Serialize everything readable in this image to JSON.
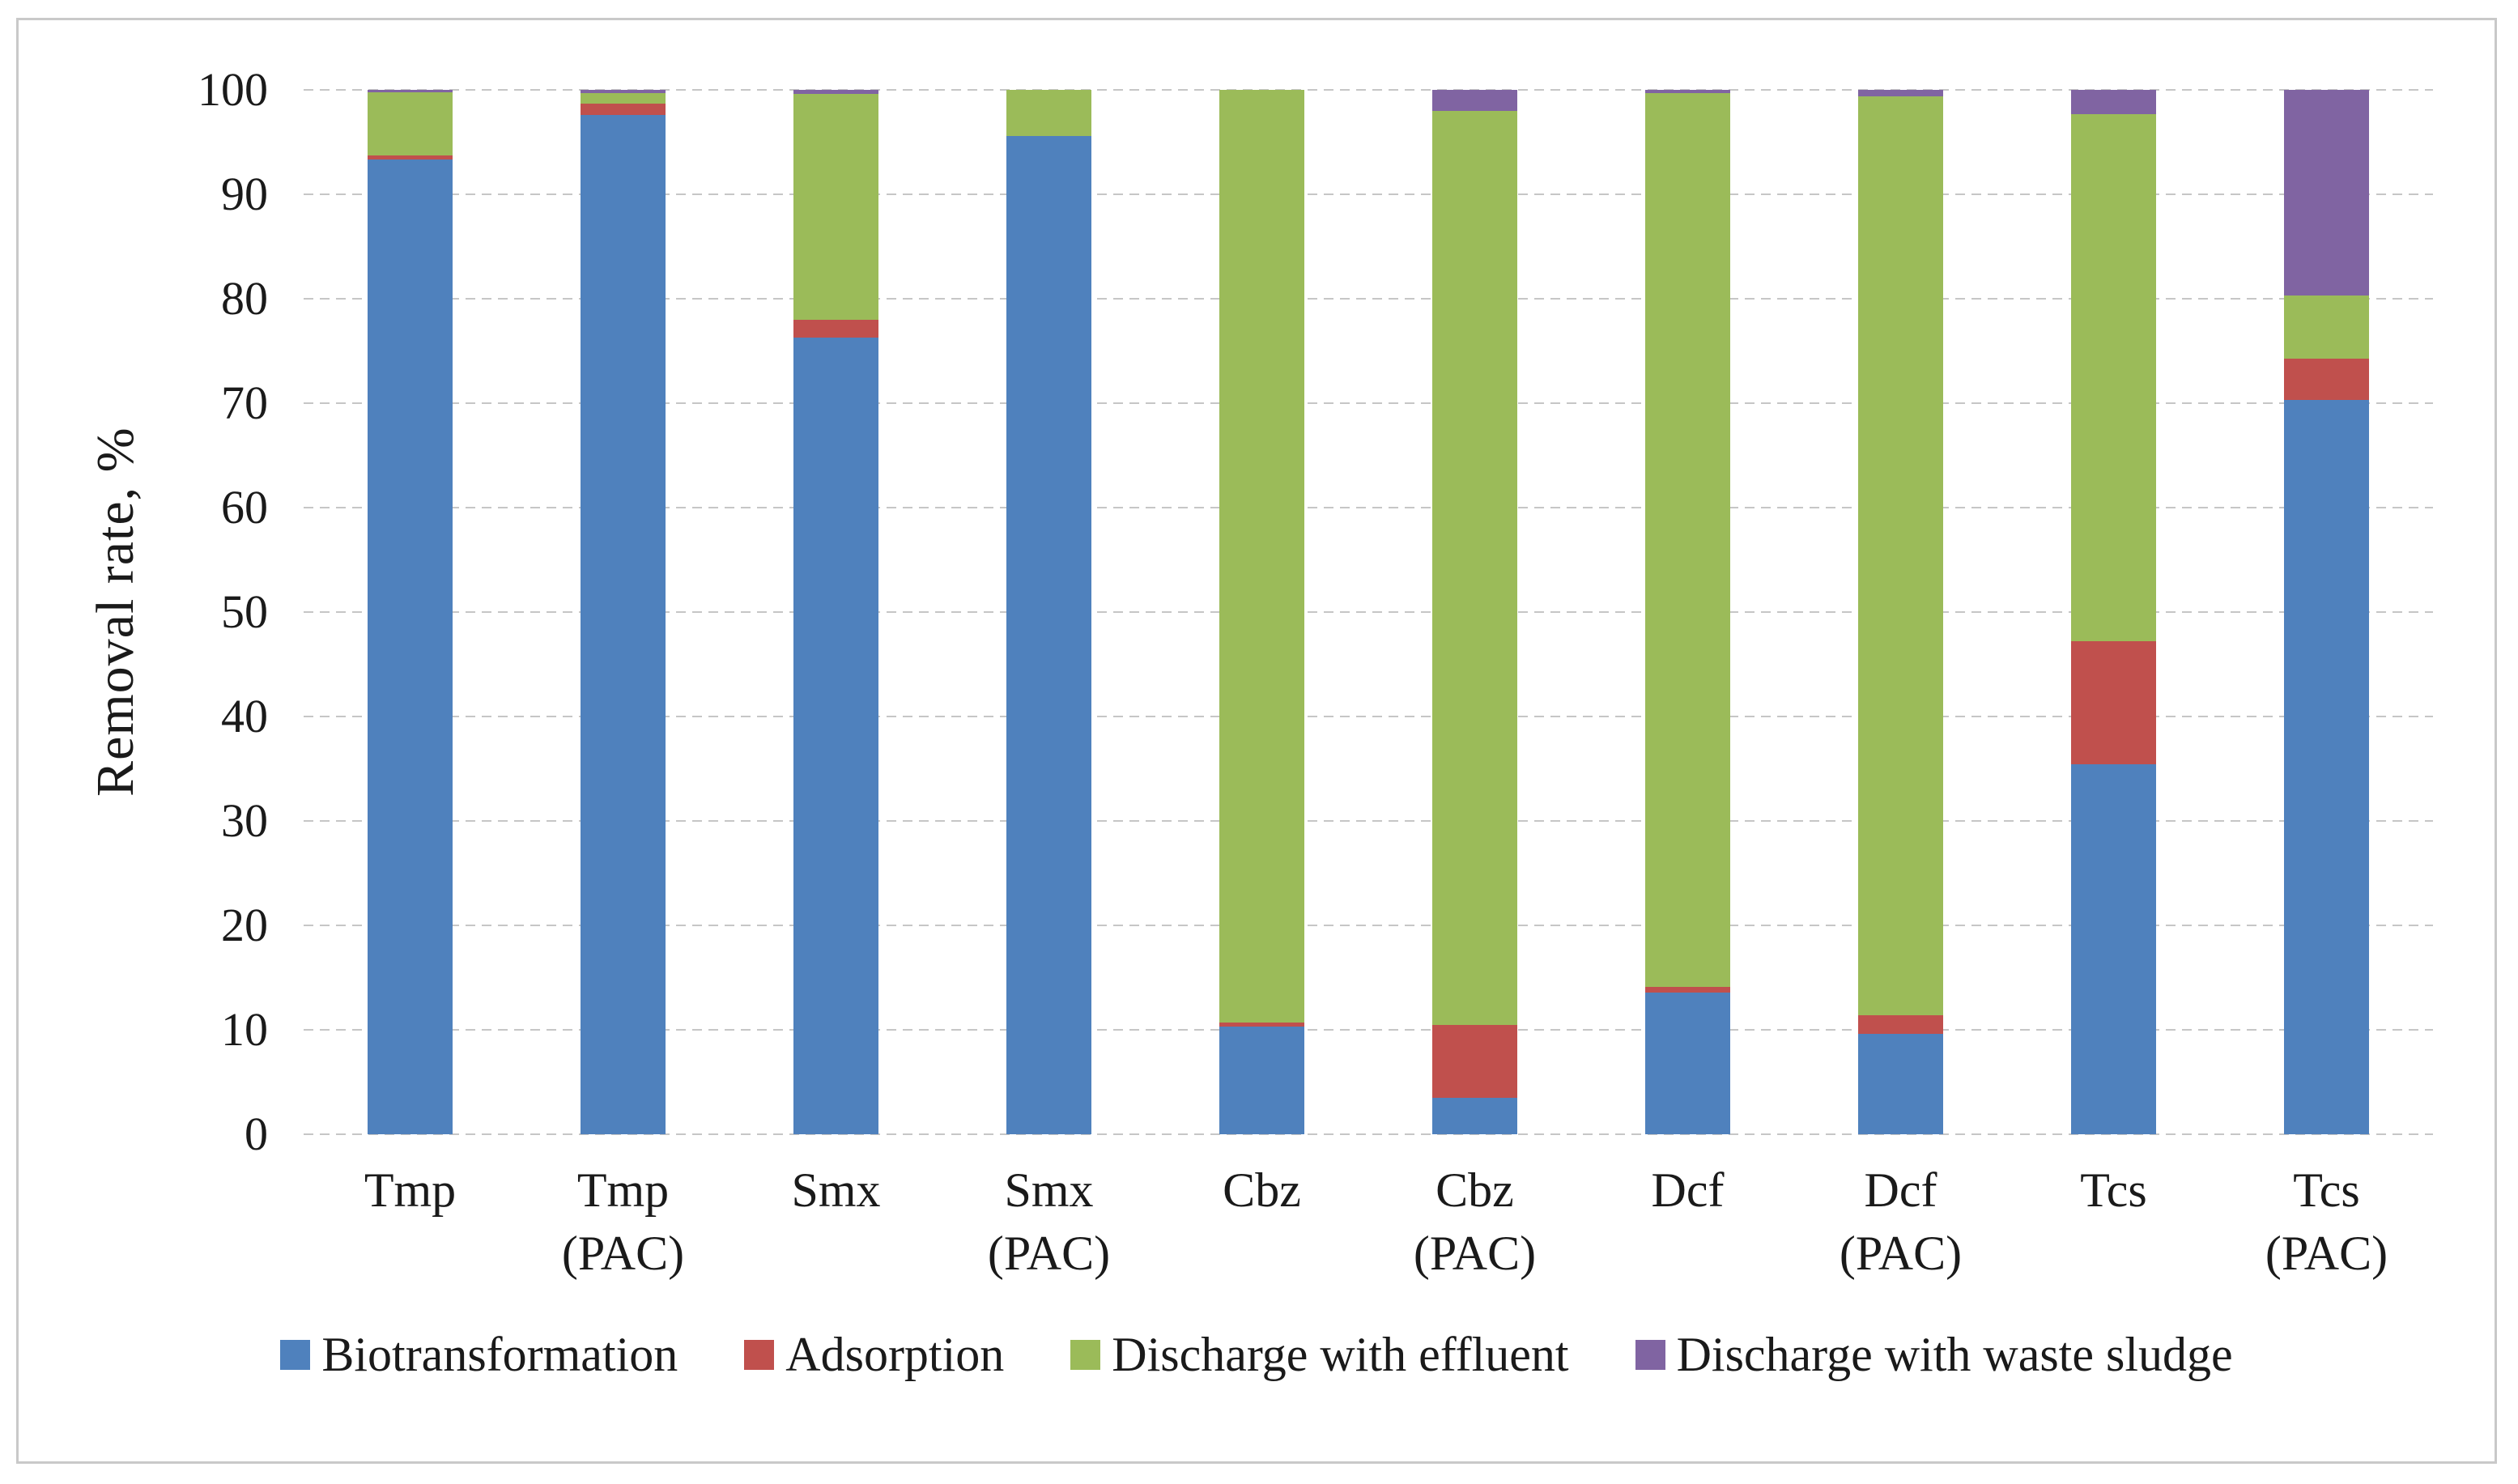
{
  "figure": {
    "y_axis_title": "Removal rate, %"
  },
  "chart_data": {
    "type": "bar",
    "stacked": true,
    "title": "",
    "xlabel": "",
    "ylabel": "Removal rate, %",
    "ylim": [
      0,
      100
    ],
    "yticks": [
      0,
      10,
      20,
      30,
      40,
      50,
      60,
      70,
      80,
      90,
      100
    ],
    "grid": "horizontal-dashed",
    "grid_color": "#c6c6c6",
    "legend_position": "bottom",
    "categories": [
      {
        "name": "Tmp",
        "qualifier": ""
      },
      {
        "name": "Tmp",
        "qualifier": "(PAC)"
      },
      {
        "name": "Smx",
        "qualifier": ""
      },
      {
        "name": "Smx",
        "qualifier": "(PAC)"
      },
      {
        "name": "Cbz",
        "qualifier": ""
      },
      {
        "name": "Cbz",
        "qualifier": "(PAC)"
      },
      {
        "name": "Dcf",
        "qualifier": ""
      },
      {
        "name": "Dcf",
        "qualifier": "(PAC)"
      },
      {
        "name": "Tcs",
        "qualifier": ""
      },
      {
        "name": "Tcs",
        "qualifier": "(PAC)"
      }
    ],
    "series": [
      {
        "name": "Biotransformation",
        "color": "#4F81BD",
        "values": [
          93.3,
          97.6,
          76.3,
          95.6,
          10.3,
          3.5,
          13.6,
          9.6,
          35.4,
          70.3
        ]
      },
      {
        "name": "Adsorption",
        "color": "#C0504D",
        "values": [
          0.4,
          1.1,
          1.7,
          0,
          0.4,
          7.0,
          0.5,
          1.8,
          11.8,
          4.0
        ]
      },
      {
        "name": "Discharge with effluent",
        "color": "#9BBB59",
        "values": [
          6.1,
          1.0,
          21.6,
          4.4,
          89.3,
          87.5,
          85.6,
          88.0,
          50.5,
          6.0
        ]
      },
      {
        "name": "Discharge with waste sludge",
        "color": "#8064A2",
        "values": [
          0.2,
          0.3,
          0.4,
          0,
          0,
          2.0,
          0.3,
          0.6,
          2.3,
          19.7
        ]
      }
    ]
  }
}
